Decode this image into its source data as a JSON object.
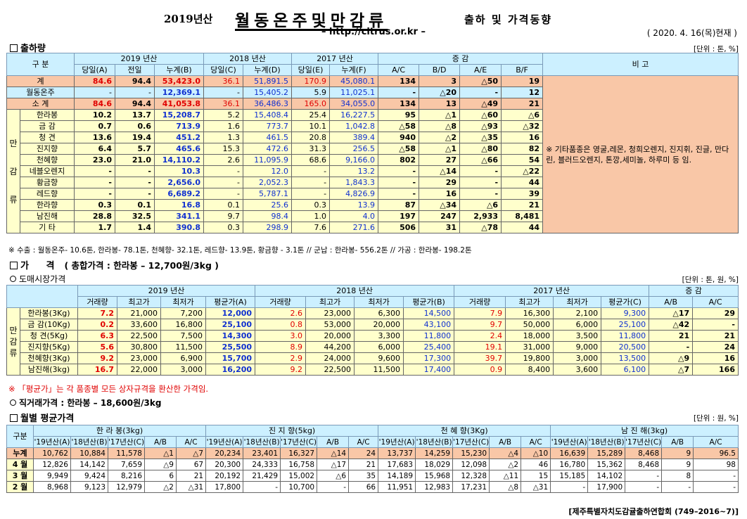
{
  "header": {
    "year_label": "2019년산",
    "title": "월동온주및만감류",
    "subtitle": "출하 및 가격동향",
    "url": "– http://citrus.or.kr –",
    "date": "( 2020. 4. 16(목)현재 )"
  },
  "shipment": {
    "section_title": "출하량",
    "unit": "[단위 : 톤, %]",
    "h_gubun": "구 분",
    "h_y2019": "2019 년산",
    "h_y2018": "2018 년산",
    "h_y2017": "2017 년산",
    "h_change": "증 감",
    "h_remark": "비 고",
    "sub_headers": [
      "당일(A)",
      "전일",
      "누계(B)",
      "당일(C)",
      "누계(D)",
      "당일(E)",
      "누계(F)",
      "A/C",
      "B/D",
      "A/E",
      "B/F"
    ],
    "group_label": "만 감 류",
    "rows": [
      {
        "label": "계",
        "v": [
          "84.6",
          "94.4",
          "53,423.0",
          "36.1",
          "51,891.5",
          "170.9",
          "45,080.1",
          "134",
          "3",
          "△50",
          "19"
        ]
      },
      {
        "label": "월동온주",
        "v": [
          "-",
          "-",
          "12,369.1",
          "-",
          "15,405.2",
          "5.9",
          "11,025.1",
          "-",
          "△20",
          "-",
          "12"
        ]
      },
      {
        "label": "소 계",
        "v": [
          "84.6",
          "94.4",
          "41,053.8",
          "36.1",
          "36,486.3",
          "165.0",
          "34,055.0",
          "134",
          "13",
          "△49",
          "21"
        ]
      },
      {
        "label": "한라봉",
        "v": [
          "10.2",
          "13.7",
          "15,208.7",
          "5.2",
          "15,408.4",
          "25.4",
          "16,227.5",
          "95",
          "△1",
          "△60",
          "△6"
        ]
      },
      {
        "label": "금 감",
        "v": [
          "0.7",
          "0.6",
          "713.9",
          "1.6",
          "773.7",
          "10.1",
          "1,042.8",
          "△58",
          "△8",
          "△93",
          "△32"
        ]
      },
      {
        "label": "청 견",
        "v": [
          "13.6",
          "19.4",
          "451.2",
          "1.3",
          "461.5",
          "20.8",
          "389.4",
          "940",
          "△2",
          "△35",
          "16"
        ]
      },
      {
        "label": "진지향",
        "v": [
          "6.4",
          "5.7",
          "465.6",
          "15.3",
          "472.6",
          "31.3",
          "256.5",
          "△58",
          "△1",
          "△80",
          "82"
        ]
      },
      {
        "label": "천혜향",
        "v": [
          "23.0",
          "21.0",
          "14,110.2",
          "2.6",
          "11,095.9",
          "68.6",
          "9,166.0",
          "802",
          "27",
          "△66",
          "54"
        ]
      },
      {
        "label": "네블오렌지",
        "v": [
          "-",
          "-",
          "10.3",
          "-",
          "12.0",
          "-",
          "13.2",
          "-",
          "△14",
          "-",
          "△22"
        ]
      },
      {
        "label": "황금향",
        "v": [
          "-",
          "-",
          "2,656.0",
          "-",
          "2,052.3",
          "-",
          "1,843.3",
          "-",
          "29",
          "-",
          "44"
        ]
      },
      {
        "label": "레드향",
        "v": [
          "-",
          "-",
          "6,689.2",
          "-",
          "5,787.1",
          "-",
          "4,826.9",
          "-",
          "16",
          "-",
          "39"
        ]
      },
      {
        "label": "한라향",
        "v": [
          "0.3",
          "0.1",
          "16.8",
          "0.1",
          "25.6",
          "0.3",
          "13.9",
          "87",
          "△34",
          "△6",
          "21"
        ]
      },
      {
        "label": "남진해",
        "v": [
          "28.8",
          "32.5",
          "341.1",
          "9.7",
          "98.4",
          "1.0",
          "4.0",
          "197",
          "247",
          "2,933",
          "8,481"
        ]
      },
      {
        "label": "기 타",
        "v": [
          "1.7",
          "1.4",
          "390.8",
          "0.3",
          "298.9",
          "7.6",
          "271.6",
          "506",
          "31",
          "△78",
          "44"
        ]
      }
    ],
    "remark": "※ 기타품종은 영굴,레몬, 청희오렌지, 진지휘, 진글, 만다린, 블러드오렌지, 톤깡,세미놀, 하루미 등 임.",
    "footnote": "※ 수출 : 월동온주- 10.6톤, 한라봉- 78.1톤, 천혜향- 32.1톤, 레드향- 13.9톤, 황금향 - 3.1톤 // 군납 : 한라봉- 556.2톤 // 가공 : 한라봉- 198.2톤"
  },
  "price": {
    "section_title": "가 격",
    "section_sub": "( 총합가격 : 한라봉 – 12,700원/3kg )",
    "wholesale_title": "도매시장가격",
    "unit": "[단위 : 톤, 원, %]",
    "h_y2019": "2019 년산",
    "h_y2018": "2018 년산",
    "h_y2017": "2017 년산",
    "h_change": "증 감",
    "sub_headers": [
      "거래량",
      "최고가",
      "최저가",
      "평균가(A)",
      "거래량",
      "최고가",
      "최저가",
      "평균가(B)",
      "거래량",
      "최고가",
      "최저가",
      "평균가(C)",
      "A/B",
      "A/C"
    ],
    "group_label": "만 감 류",
    "rows": [
      {
        "label": "한라봉(3Kg)",
        "v": [
          "7.2",
          "21,000",
          "7,200",
          "12,000",
          "2.6",
          "23,000",
          "6,300",
          "14,500",
          "7.9",
          "16,300",
          "2,100",
          "9,300",
          "△17",
          "29"
        ]
      },
      {
        "label": "금 감(10Kg)",
        "v": [
          "0.2",
          "33,600",
          "16,800",
          "25,100",
          "0.8",
          "53,000",
          "20,000",
          "43,100",
          "9.7",
          "50,000",
          "6,000",
          "25,100",
          "△42",
          "-"
        ]
      },
      {
        "label": "청 견(5Kg)",
        "v": [
          "6.3",
          "22,500",
          "7,500",
          "14,300",
          "3.0",
          "20,000",
          "3,300",
          "11,800",
          "2.4",
          "18,000",
          "3,500",
          "11,800",
          "21",
          "21"
        ]
      },
      {
        "label": "진지향(5Kg)",
        "v": [
          "5.6",
          "30,800",
          "11,500",
          "25,500",
          "8.9",
          "44,200",
          "6,000",
          "25,400",
          "19.1",
          "31,000",
          "9,000",
          "20,500",
          "-",
          "24"
        ]
      },
      {
        "label": "천혜향(3Kg)",
        "v": [
          "9.2",
          "23,000",
          "6,900",
          "15,700",
          "2.9",
          "24,000",
          "9,600",
          "17,300",
          "39.7",
          "19,800",
          "3,000",
          "13,500",
          "△9",
          "16"
        ]
      },
      {
        "label": "남진해(3kg)",
        "v": [
          "16.7",
          "22,000",
          "3,000",
          "16,200",
          "9.2",
          "22,500",
          "11,500",
          "17,400",
          "0.9",
          "8,400",
          "3,600",
          "6,100",
          "△7",
          "166"
        ]
      }
    ],
    "footnote": "※ 「평균가」는 각 품종별 모든 상자규격을 환산한 가격임.",
    "direct_title": "직거래가격 : 한라봉 – 18,600원/3kg"
  },
  "monthly": {
    "section_title": "월별 평균가격",
    "unit": "[단위 : 원, %]",
    "h_gubun": "구분",
    "groups": [
      "한 라 봉(3kg)",
      "진 지 향(5kg)",
      "천 혜 향(3Kg)",
      "남 진 해(3kg)"
    ],
    "sub_headers": [
      "'19년산(A)",
      "'18년산(B)",
      "'17년산(C)",
      "A/B",
      "A/C"
    ],
    "rows": [
      {
        "label": "누계",
        "v": [
          "10,762",
          "10,884",
          "11,578",
          "△1",
          "△7",
          "20,234",
          "23,401",
          "16,327",
          "△14",
          "24",
          "13,737",
          "14,259",
          "15,230",
          "△4",
          "△10",
          "16,639",
          "15,289",
          "8,468",
          "9",
          "96.5"
        ]
      },
      {
        "label": "4 월",
        "v": [
          "12,826",
          "14,142",
          "7,659",
          "△9",
          "67",
          "20,300",
          "24,333",
          "16,758",
          "△17",
          "21",
          "17,683",
          "18,029",
          "12,098",
          "△2",
          "46",
          "16,780",
          "15,362",
          "8,468",
          "9",
          "98"
        ]
      },
      {
        "label": "3 월",
        "v": [
          "9,949",
          "9,424",
          "8,216",
          "6",
          "21",
          "20,192",
          "21,429",
          "15,002",
          "△6",
          "35",
          "14,189",
          "15,968",
          "12,328",
          "△11",
          "15",
          "15,185",
          "14,102",
          "-",
          "8",
          "-"
        ]
      },
      {
        "label": "2 월",
        "v": [
          "8,968",
          "9,123",
          "12,979",
          "△2",
          "△31",
          "17,800",
          "-",
          "10,700",
          "-",
          "66",
          "11,951",
          "12,983",
          "17,231",
          "△8",
          "△31",
          "-",
          "17,900",
          "-",
          "-",
          "-"
        ]
      }
    ],
    "footer": "[제주특별자치도감귤출하연합회 (749–2016~7)]"
  }
}
